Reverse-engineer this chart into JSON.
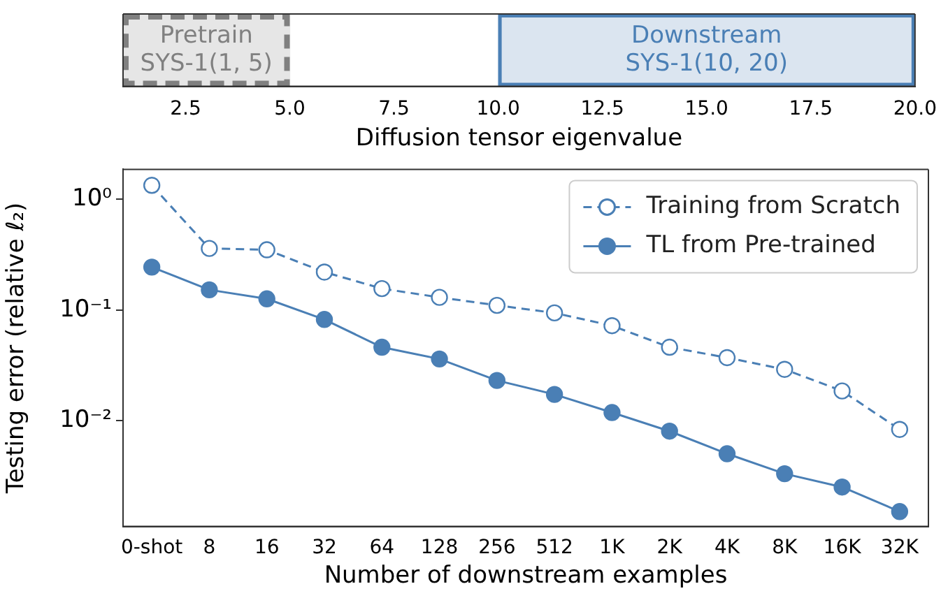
{
  "chart_data": [
    {
      "type": "bar",
      "orientation": "horizontal",
      "categories": [
        null
      ],
      "xlabel": "Diffusion tensor eigenvalue",
      "xlim": [
        1,
        20
      ],
      "xticks": [
        {
          "value": 2.5,
          "label": "2.5"
        },
        {
          "value": 5,
          "label": "5.0"
        },
        {
          "value": 7.5,
          "label": "7.5"
        },
        {
          "value": 10,
          "label": "10.0"
        },
        {
          "value": 12.5,
          "label": "12.5"
        },
        {
          "value": 15,
          "label": "15.0"
        },
        {
          "value": 17.5,
          "label": "17.5"
        },
        {
          "value": 20,
          "label": "20.0"
        }
      ],
      "tick_labels": "x",
      "series": [
        {
          "name": "Pretrain\nSYS-1(1, 5)",
          "color": "#808080",
          "line_style": "dashed",
          "base": [
            1
          ],
          "values": [
            4
          ]
        },
        {
          "name": "Downstream\nSYS-1(10, 20)",
          "color": "#4a7fb5",
          "line_style": "solid",
          "base": [
            10
          ],
          "values": [
            10
          ]
        }
      ]
    },
    {
      "type": "line",
      "xlabel": "Number of downstream examples",
      "ylabel": "Testing error (relative ℓ₂)",
      "log": "y",
      "ylim": [
        0.0011,
        1.87
      ],
      "yticks": [
        {
          "value": 1,
          "label": "10⁰"
        },
        {
          "value": 0.1,
          "label": "10⁻¹"
        },
        {
          "value": 0.01,
          "label": "10⁻²"
        }
      ],
      "legend": "top right",
      "marker": "circle",
      "categories": [
        "0-shot",
        "8",
        "16",
        "32",
        "64",
        "128",
        "256",
        "512",
        "1K",
        "2K",
        "4K",
        "8K",
        "16K",
        "32K"
      ],
      "series": [
        {
          "name": "Training from Scratch",
          "color": "#4a7fb5",
          "line_style": "dashed",
          "values": [
            1.34,
            0.36,
            0.35,
            0.22,
            0.156,
            0.13,
            0.11,
            0.094,
            0.072,
            0.046,
            0.037,
            0.029,
            0.0185,
            0.0083
          ]
        },
        {
          "name": "TL from Pre-trained",
          "color": "#4a7fb5",
          "line_style": "solid",
          "values": [
            0.244,
            0.152,
            0.126,
            0.082,
            0.046,
            0.036,
            0.023,
            0.0172,
            0.0118,
            0.008,
            0.005,
            0.0033,
            0.0025,
            0.0015
          ]
        }
      ]
    }
  ]
}
